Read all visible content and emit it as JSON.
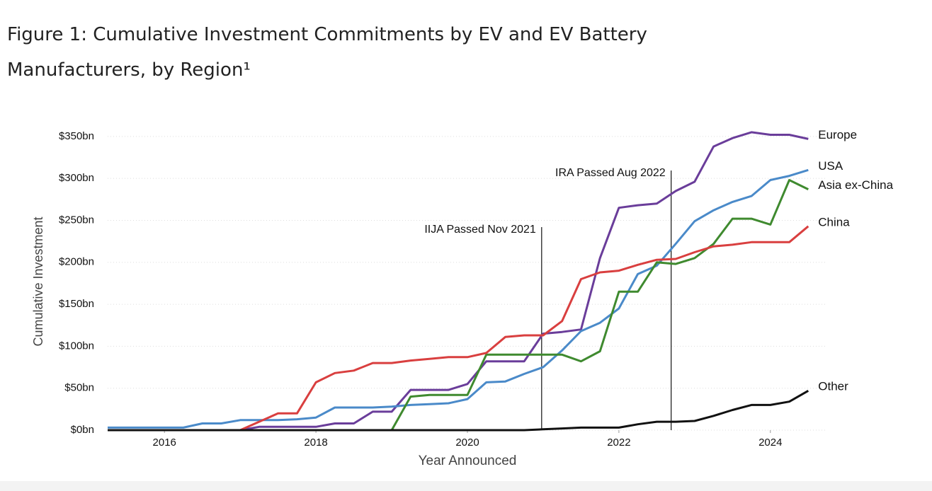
{
  "chart_data": {
    "type": "line",
    "title": "Figure 1: Cumulative Investment Commitments by EV and EV Battery Manufacturers, by Region¹",
    "xlabel": "Year Announced",
    "ylabel": "Cumulative Investment",
    "x": [
      2015.25,
      2015.5,
      2015.75,
      2016,
      2016.25,
      2016.5,
      2016.75,
      2017,
      2017.25,
      2017.5,
      2017.75,
      2018,
      2018.25,
      2018.5,
      2018.75,
      2019,
      2019.25,
      2019.5,
      2019.75,
      2020,
      2020.25,
      2020.5,
      2020.75,
      2021,
      2021.25,
      2021.5,
      2021.75,
      2022,
      2022.25,
      2022.5,
      2022.75,
      2023,
      2023.25,
      2023.5,
      2023.75,
      2024,
      2024.25,
      2024.5
    ],
    "series": [
      {
        "name": "Europe",
        "color": "#6a3d9a",
        "values": [
          0,
          0,
          0,
          0,
          0,
          0,
          0,
          0,
          4,
          4,
          4,
          4,
          8,
          8,
          22,
          22,
          48,
          48,
          48,
          55,
          82,
          82,
          82,
          115,
          117,
          120,
          205,
          265,
          268,
          270,
          285,
          296,
          338,
          348,
          355,
          352,
          352,
          347
        ]
      },
      {
        "name": "USA",
        "color": "#4a8ac9",
        "values": [
          3,
          3,
          3,
          3,
          3,
          8,
          8,
          12,
          12,
          12,
          13,
          15,
          27,
          27,
          27,
          28,
          30,
          31,
          32,
          37,
          57,
          58,
          67,
          75,
          95,
          118,
          128,
          145,
          186,
          196,
          222,
          249,
          262,
          272,
          279,
          298,
          303,
          310
        ]
      },
      {
        "name": "Asia ex-China",
        "color": "#3f8a2f",
        "values": [
          0,
          0,
          0,
          0,
          0,
          0,
          0,
          0,
          0,
          0,
          0,
          0,
          0,
          0,
          0,
          0,
          40,
          42,
          42,
          42,
          90,
          90,
          90,
          90,
          90,
          82,
          94,
          165,
          165,
          200,
          198,
          205,
          222,
          252,
          252,
          245,
          298,
          287
        ]
      },
      {
        "name": "China",
        "color": "#d93f3f",
        "values": [
          0,
          0,
          0,
          0,
          0,
          0,
          0,
          0,
          10,
          20,
          20,
          57,
          68,
          71,
          80,
          80,
          83,
          85,
          87,
          87,
          92,
          111,
          113,
          113,
          130,
          180,
          188,
          190,
          197,
          203,
          204,
          212,
          219,
          221,
          224,
          224,
          224,
          243
        ]
      },
      {
        "name": "Other",
        "color": "#111111",
        "values": [
          0,
          0,
          0,
          0,
          0,
          0,
          0,
          0,
          0,
          0,
          0,
          0,
          0,
          0,
          0,
          0,
          0,
          0,
          0,
          0,
          0,
          0,
          0,
          1,
          2,
          3,
          3,
          3,
          7,
          10,
          10,
          11,
          17,
          24,
          30,
          30,
          34,
          47
        ]
      }
    ],
    "annotations": [
      {
        "text": "IIJA Passed Nov 2021",
        "x": 2020.98
      },
      {
        "text": "IRA Passed Aug 2022",
        "x": 2022.69
      }
    ],
    "xlim": [
      2015.25,
      2024.75
    ],
    "xticks": [
      2016,
      2018,
      2020,
      2022,
      2024
    ],
    "ylim": [
      0,
      360
    ],
    "yticks": [
      {
        "value": 0,
        "label": "$0bn"
      },
      {
        "value": 50,
        "label": "$50bn"
      },
      {
        "value": 100,
        "label": "$100bn"
      },
      {
        "value": 150,
        "label": "$150bn"
      },
      {
        "value": 200,
        "label": "$200bn"
      },
      {
        "value": 250,
        "label": "$250bn"
      },
      {
        "value": 300,
        "label": "$300bn"
      },
      {
        "value": 350,
        "label": "$350bn"
      }
    ],
    "grid": true
  }
}
